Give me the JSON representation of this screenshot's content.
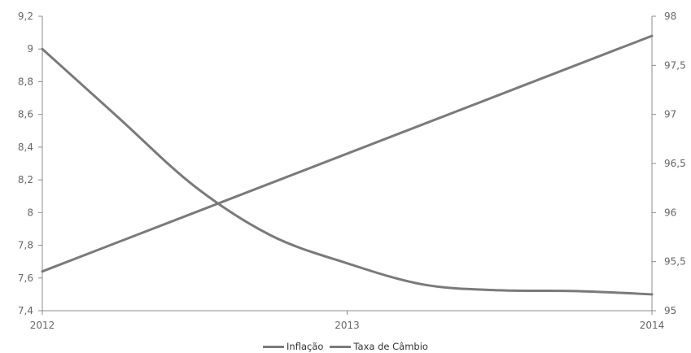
{
  "chart_data": {
    "type": "line",
    "x": [
      "2012",
      "2013",
      "2014"
    ],
    "x_numeric": [
      2012,
      2013,
      2014
    ],
    "left_axis": {
      "ylim": [
        7.4,
        9.2
      ],
      "ticks": [
        "7,4",
        "7,6",
        "7,8",
        "8",
        "8,2",
        "8,4",
        "8,6",
        "8,8",
        "9",
        "9,2"
      ],
      "tick_values": [
        7.4,
        7.6,
        7.8,
        8.0,
        8.2,
        8.4,
        8.6,
        8.8,
        9.0,
        9.2
      ]
    },
    "right_axis": {
      "ylim": [
        95,
        98
      ],
      "ticks": [
        "95",
        "95,5",
        "96",
        "96,5",
        "97",
        "97,5",
        "98"
      ],
      "tick_values": [
        95,
        95.5,
        96,
        96.5,
        97,
        97.5,
        98
      ]
    },
    "series": [
      {
        "name": "Inflação",
        "axis": "left",
        "color": "#7a7a7a",
        "points": [
          [
            2012,
            9.0
          ],
          [
            2012.25,
            8.58
          ],
          [
            2012.5,
            8.16
          ],
          [
            2012.75,
            7.86
          ],
          [
            2013,
            7.69
          ],
          [
            2013.25,
            7.56
          ],
          [
            2013.5,
            7.525
          ],
          [
            2013.75,
            7.52
          ],
          [
            2014,
            7.5
          ]
        ]
      },
      {
        "name": "Taxa de Câmbio",
        "axis": "right",
        "color": "#7a7a7a",
        "points": [
          [
            2012,
            95.4
          ],
          [
            2014,
            97.8
          ]
        ]
      }
    ],
    "title": "",
    "xlabel": "",
    "ylabel": "",
    "grid": false,
    "legend_position": "bottom"
  }
}
